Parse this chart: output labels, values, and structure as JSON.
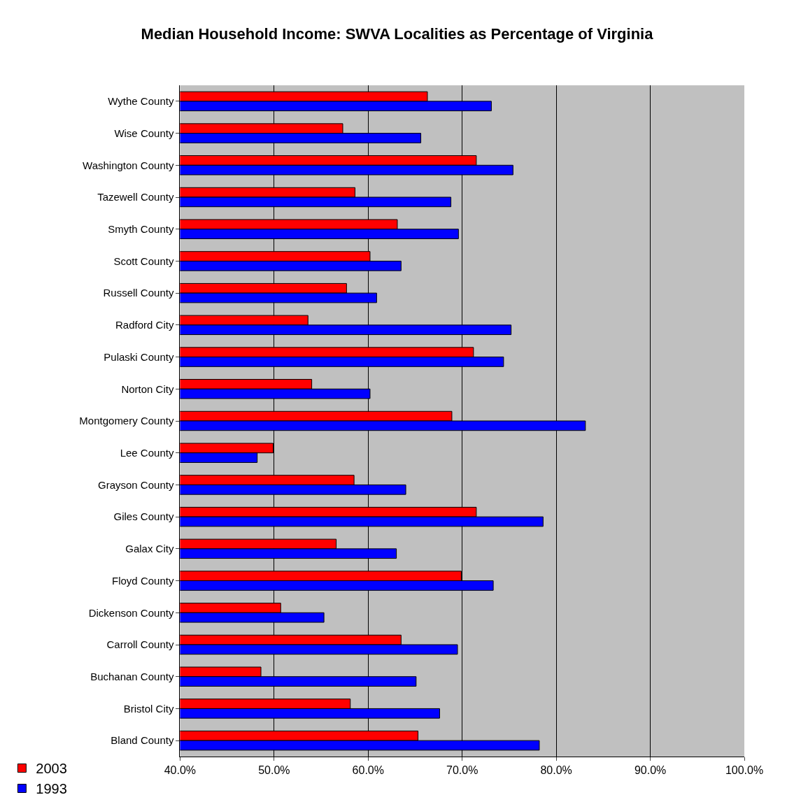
{
  "chart_data": {
    "type": "bar",
    "orientation": "horizontal",
    "title": "Median Household Income: SWVA Localities as Percentage of Virginia",
    "categories": [
      "Wythe County",
      "Wise County",
      "Washington County",
      "Tazewell County",
      "Smyth County",
      "Scott County",
      "Russell County",
      "Radford City",
      "Pulaski County",
      "Norton City",
      "Montgomery County",
      "Lee County",
      "Grayson County",
      "Giles County",
      "Galax City",
      "Floyd County",
      "Dickenson County",
      "Carroll County",
      "Buchanan County",
      "Bristol City",
      "Bland County"
    ],
    "series": [
      {
        "name": "2003",
        "color": "#ff0000",
        "values": [
          66.3,
          57.3,
          71.5,
          58.6,
          63.1,
          60.2,
          57.7,
          53.6,
          71.2,
          54.0,
          68.9,
          49.9,
          58.5,
          71.5,
          56.6,
          69.9,
          50.7,
          63.5,
          48.6,
          58.1,
          65.3
        ]
      },
      {
        "name": "1993",
        "color": "#0000ff",
        "values": [
          73.1,
          65.6,
          75.4,
          68.8,
          69.6,
          63.5,
          60.9,
          75.2,
          74.4,
          60.2,
          83.1,
          48.2,
          64.0,
          78.6,
          63.0,
          73.3,
          55.3,
          69.5,
          65.1,
          67.6,
          78.2
        ]
      }
    ],
    "xlim": [
      40,
      100
    ],
    "xticks": [
      {
        "value": 40,
        "label": "40.0%"
      },
      {
        "value": 50,
        "label": "50.0%"
      },
      {
        "value": 60,
        "label": "60.0%"
      },
      {
        "value": 70,
        "label": "70.0%"
      },
      {
        "value": 80,
        "label": "80.0%"
      },
      {
        "value": 90,
        "label": "90.0%"
      },
      {
        "value": 100,
        "label": "100.0%"
      }
    ],
    "grid": "x",
    "legend": "bottom left"
  }
}
